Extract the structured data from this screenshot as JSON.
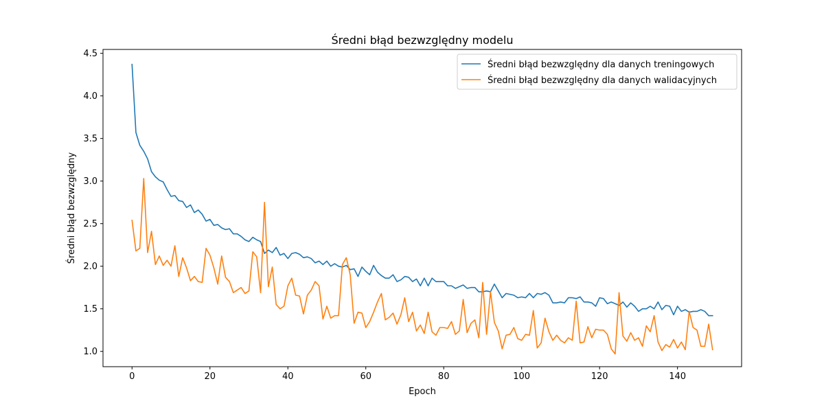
{
  "chart_data": {
    "type": "line",
    "title": "Średni błąd bezwzględny modelu",
    "xlabel": "Epoch",
    "ylabel": "Średni błąd bezwzględny",
    "xlim": [
      -7.45,
      156.45
    ],
    "ylim": [
      0.8205,
      4.5455
    ],
    "xticks": [
      0,
      20,
      40,
      60,
      80,
      100,
      120,
      140
    ],
    "yticks": [
      1.0,
      1.5,
      2.0,
      2.5,
      3.0,
      3.5,
      4.0,
      4.5
    ],
    "legend_position": "upper right",
    "grid": false,
    "series": [
      {
        "name": "Średni błąd bezwzględny dla danych treningowych",
        "color": "#1f77b4",
        "values": [
          4.37,
          3.57,
          3.42,
          3.35,
          3.26,
          3.11,
          3.05,
          3.01,
          2.99,
          2.9,
          2.82,
          2.83,
          2.77,
          2.76,
          2.69,
          2.72,
          2.63,
          2.66,
          2.61,
          2.53,
          2.55,
          2.48,
          2.49,
          2.45,
          2.43,
          2.44,
          2.38,
          2.38,
          2.35,
          2.31,
          2.29,
          2.34,
          2.31,
          2.29,
          2.15,
          2.19,
          2.16,
          2.22,
          2.13,
          2.15,
          2.09,
          2.15,
          2.16,
          2.14,
          2.1,
          2.11,
          2.09,
          2.04,
          2.06,
          2.02,
          2.06,
          2.0,
          2.03,
          2.0,
          1.99,
          2.01,
          1.96,
          1.97,
          1.88,
          1.99,
          1.94,
          1.9,
          2.01,
          1.93,
          1.89,
          1.86,
          1.86,
          1.9,
          1.82,
          1.84,
          1.88,
          1.87,
          1.82,
          1.85,
          1.77,
          1.86,
          1.77,
          1.86,
          1.82,
          1.82,
          1.82,
          1.77,
          1.77,
          1.74,
          1.76,
          1.78,
          1.74,
          1.75,
          1.75,
          1.7,
          1.7,
          1.71,
          1.7,
          1.79,
          1.71,
          1.63,
          1.68,
          1.67,
          1.66,
          1.63,
          1.64,
          1.63,
          1.68,
          1.63,
          1.68,
          1.67,
          1.69,
          1.66,
          1.57,
          1.57,
          1.58,
          1.57,
          1.63,
          1.63,
          1.62,
          1.64,
          1.58,
          1.58,
          1.57,
          1.53,
          1.63,
          1.62,
          1.56,
          1.58,
          1.56,
          1.54,
          1.58,
          1.52,
          1.57,
          1.53,
          1.47,
          1.5,
          1.5,
          1.53,
          1.5,
          1.58,
          1.49,
          1.54,
          1.53,
          1.43,
          1.53,
          1.47,
          1.49,
          1.46,
          1.47,
          1.47,
          1.49,
          1.47,
          1.42,
          1.42
        ]
      },
      {
        "name": "Średni błąd bezwzględny dla danych walidacyjnych",
        "color": "#ff7f0e",
        "values": [
          2.54,
          2.18,
          2.21,
          3.03,
          2.16,
          2.41,
          2.02,
          2.12,
          2.01,
          2.07,
          2.0,
          2.24,
          1.88,
          2.1,
          1.98,
          1.83,
          1.88,
          1.82,
          1.81,
          2.21,
          2.13,
          1.98,
          1.79,
          2.12,
          1.87,
          1.82,
          1.69,
          1.72,
          1.75,
          1.68,
          1.71,
          2.17,
          2.11,
          1.69,
          2.75,
          1.76,
          1.99,
          1.55,
          1.5,
          1.53,
          1.77,
          1.86,
          1.66,
          1.65,
          1.44,
          1.66,
          1.72,
          1.82,
          1.77,
          1.38,
          1.53,
          1.39,
          1.42,
          1.42,
          2.02,
          2.1,
          1.9,
          1.33,
          1.46,
          1.45,
          1.28,
          1.35,
          1.46,
          1.58,
          1.68,
          1.37,
          1.4,
          1.45,
          1.32,
          1.43,
          1.63,
          1.35,
          1.46,
          1.24,
          1.31,
          1.21,
          1.46,
          1.23,
          1.19,
          1.28,
          1.28,
          1.27,
          1.35,
          1.2,
          1.24,
          1.61,
          1.22,
          1.33,
          1.37,
          1.16,
          1.81,
          1.2,
          1.7,
          1.34,
          1.24,
          1.03,
          1.19,
          1.2,
          1.28,
          1.15,
          1.13,
          1.2,
          1.19,
          1.48,
          1.04,
          1.1,
          1.39,
          1.23,
          1.13,
          1.19,
          1.13,
          1.1,
          1.16,
          1.13,
          1.59,
          1.1,
          1.11,
          1.29,
          1.16,
          1.26,
          1.25,
          1.25,
          1.2,
          1.03,
          0.97,
          1.69,
          1.18,
          1.12,
          1.22,
          1.13,
          1.16,
          1.06,
          1.3,
          1.23,
          1.42,
          1.11,
          1.01,
          1.08,
          1.05,
          1.14,
          1.04,
          1.11,
          1.02,
          1.47,
          1.28,
          1.25,
          1.06,
          1.06,
          1.32,
          1.02
        ]
      }
    ]
  }
}
